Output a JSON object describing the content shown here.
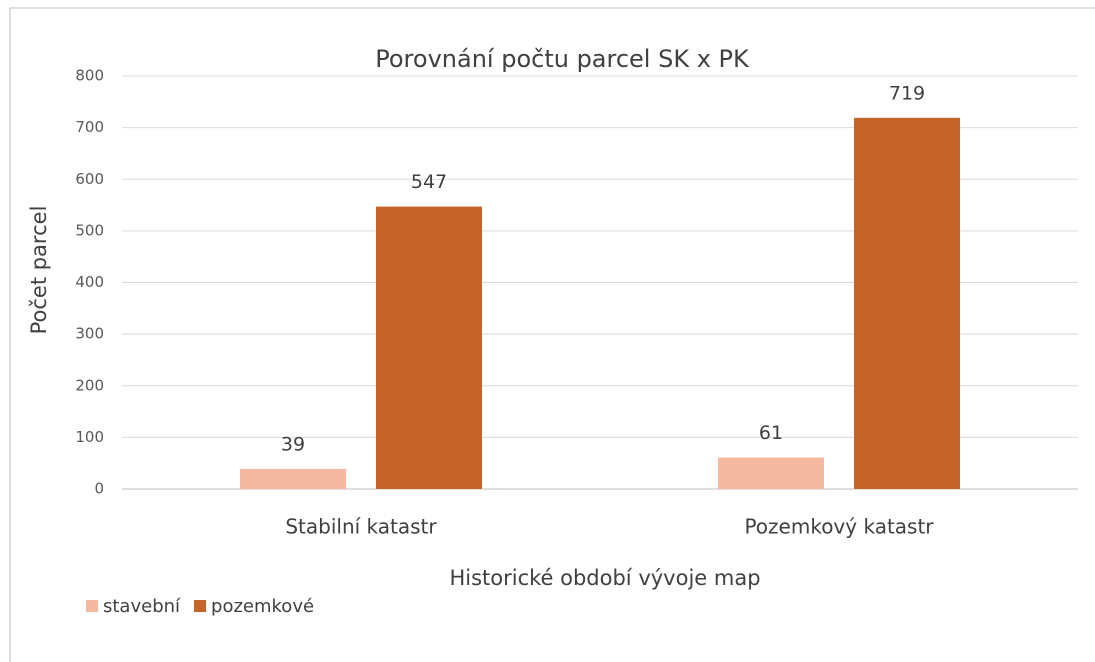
{
  "chart_data": {
    "type": "bar",
    "title": "Porovnání počtu parcel SK x PK",
    "x_label": "Historické období vývoje map",
    "y_label": "Počet parcel",
    "categories": [
      "Stabilní katastr",
      "Pozemkový katastr"
    ],
    "series": [
      {
        "name": "stavební",
        "color": "#f4b9a0",
        "values": [
          39,
          61
        ]
      },
      {
        "name": "pozemkové",
        "color": "#c5652a",
        "values": [
          547,
          719
        ]
      }
    ],
    "ylim": [
      0,
      800
    ],
    "yticks": [
      0,
      100,
      200,
      300,
      400,
      500,
      600,
      700,
      800
    ],
    "grid": true,
    "legend": "bottom-left"
  }
}
